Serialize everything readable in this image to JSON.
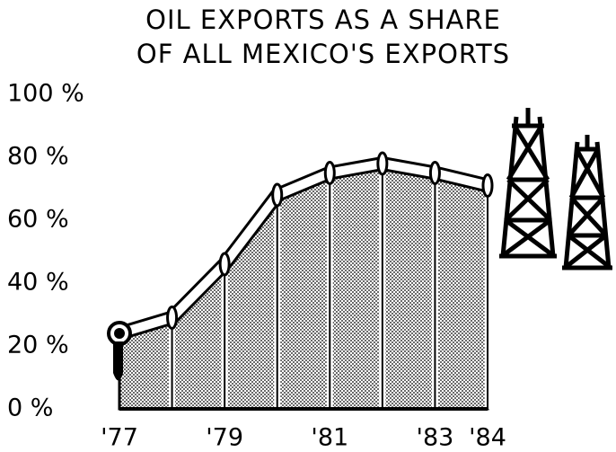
{
  "chart_data": {
    "type": "area",
    "title": [
      "OIL EXPORTS AS A SHARE",
      "OF ALL MEXICO'S EXPORTS"
    ],
    "categories": [
      "'77",
      null,
      "'79",
      null,
      "'81",
      null,
      "'83",
      "'84"
    ],
    "values": [
      24,
      29,
      46,
      68,
      75,
      78,
      75,
      71
    ],
    "ylim": [
      0,
      100
    ],
    "yticks": [
      {
        "value": 0,
        "label": "0 %"
      },
      {
        "value": 20,
        "label": "20 %"
      },
      {
        "value": 40,
        "label": "40 %"
      },
      {
        "value": 60,
        "label": "60 %"
      },
      {
        "value": 80,
        "label": "80 %"
      },
      {
        "value": 100,
        "label": "100 %"
      }
    ],
    "color": "#000000"
  }
}
